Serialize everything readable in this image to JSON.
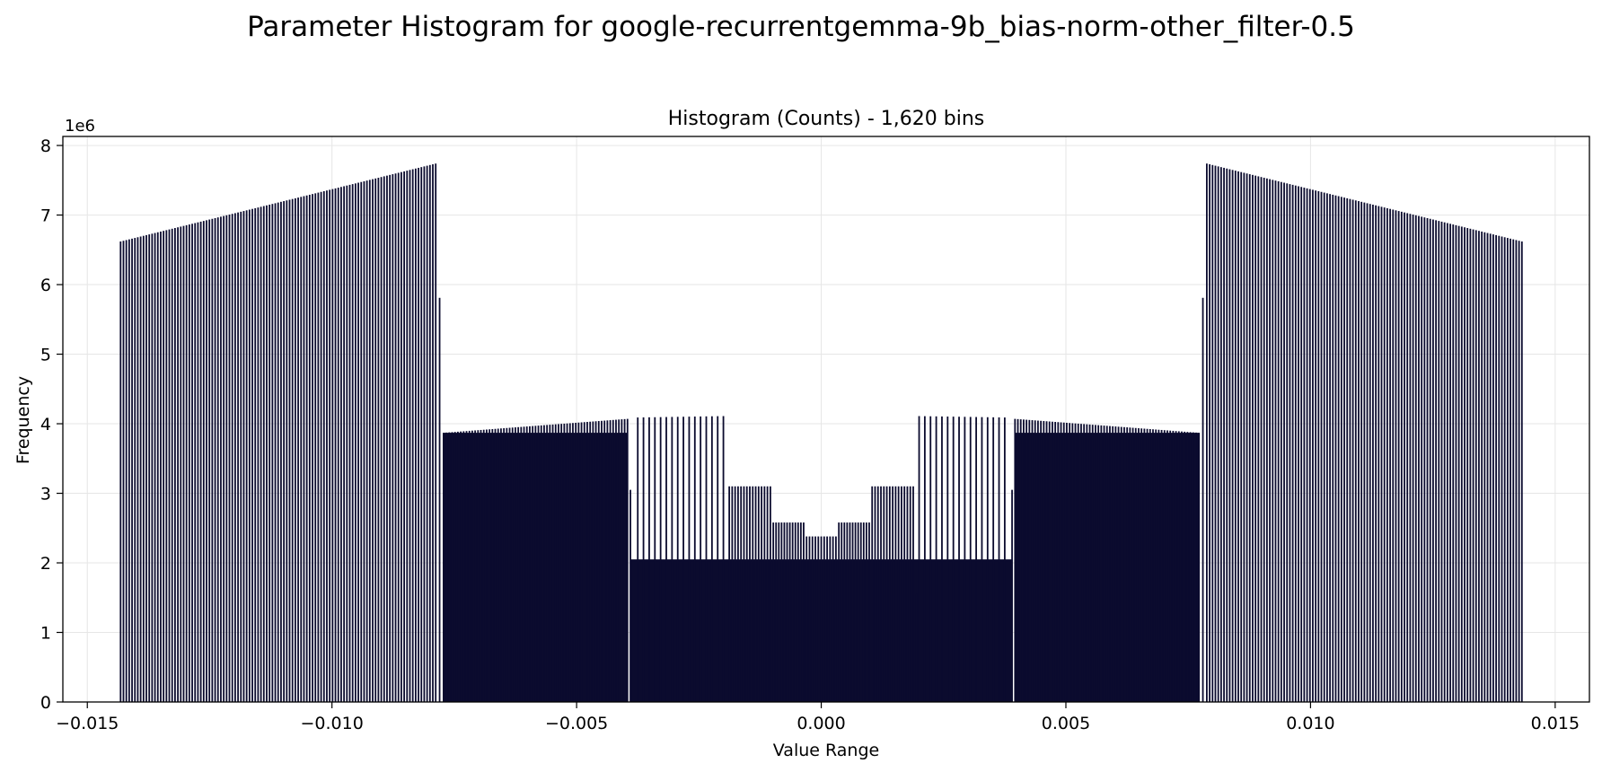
{
  "figure_title": "Parameter Histogram for google-recurrentgemma-9b_bias-norm-other_filter-0.5",
  "chart_data": {
    "type": "bar",
    "title": "Histogram (Counts) - 1,620 bins",
    "xlabel": "Value Range",
    "ylabel": "Frequency",
    "y_scale_label": "1e6",
    "y_multiplier": 1000000,
    "xlim": [
      -0.0155,
      0.0157
    ],
    "ylim": [
      0,
      8.13
    ],
    "x_ticks": [
      -0.015,
      -0.01,
      -0.005,
      0.0,
      0.005,
      0.01,
      0.015
    ],
    "x_tick_labels": [
      "−0.015",
      "−0.010",
      "−0.005",
      "0.000",
      "0.005",
      "0.010",
      "0.015"
    ],
    "y_ticks": [
      0,
      1,
      2,
      3,
      4,
      5,
      6,
      7,
      8
    ],
    "y_tick_labels": [
      "0",
      "1",
      "2",
      "3",
      "4",
      "5",
      "6",
      "7",
      "8"
    ],
    "grid": true,
    "bar_color": "#0b0b2e",
    "bar_edge_color": "#3a3a5c",
    "regions": [
      {
        "name": "outer-left",
        "x_start": -0.01432,
        "x_end": -0.00788,
        "step": 5.85e-05,
        "y_start": 6.62,
        "y_end": 7.74
      },
      {
        "name": "mid-left",
        "x_start": -0.00772,
        "x_end": -0.00396,
        "step": 5.85e-05,
        "y_start": 3.87,
        "y_end": 4.07
      },
      {
        "name": "inner-left-a",
        "x_start": -0.00375,
        "x_end": -0.002,
        "step": 0.000117,
        "y_start": 4.09,
        "y_end": 4.11
      },
      {
        "name": "inner-left-b",
        "x_start": -0.00188,
        "x_end": -0.00104,
        "step": 5.85e-05,
        "y_start": 3.1,
        "y_end": 3.1
      },
      {
        "name": "inner-left-c",
        "x_start": -0.00098,
        "x_end": -0.00036,
        "step": 5.85e-05,
        "y_start": 2.58,
        "y_end": 2.58
      },
      {
        "name": "center",
        "x_start": -0.0003,
        "x_end": 0.0003,
        "step": 5.85e-05,
        "y_start": 2.38,
        "y_end": 2.38
      },
      {
        "name": "inner-right-c",
        "x_start": 0.00036,
        "x_end": 0.00098,
        "step": 5.85e-05,
        "y_start": 2.58,
        "y_end": 2.58
      },
      {
        "name": "inner-right-b",
        "x_start": 0.00104,
        "x_end": 0.00188,
        "step": 5.85e-05,
        "y_start": 3.1,
        "y_end": 3.1
      },
      {
        "name": "inner-right-a",
        "x_start": 0.002,
        "x_end": 0.00375,
        "step": 0.000117,
        "y_start": 4.11,
        "y_end": 4.09
      },
      {
        "name": "mid-right",
        "x_start": 0.00396,
        "x_end": 0.00772,
        "step": 5.85e-05,
        "y_start": 4.07,
        "y_end": 3.87
      },
      {
        "name": "outer-right",
        "x_start": 0.00788,
        "x_end": 0.01432,
        "step": 5.85e-05,
        "y_start": 7.74,
        "y_end": 6.62
      }
    ],
    "dense_blocks": [
      {
        "name": "dense-center",
        "x_start": -0.00391,
        "x_end": 0.00391,
        "y": 2.05
      },
      {
        "name": "dense-left",
        "x_start": -0.00772,
        "x_end": -0.00396,
        "y": 3.87
      },
      {
        "name": "dense-right",
        "x_start": 0.00396,
        "x_end": 0.00772,
        "y": 3.87
      }
    ],
    "special_bars": [
      {
        "x": -0.0078,
        "y": 5.81
      },
      {
        "x": 0.0078,
        "y": 5.81
      },
      {
        "x": -0.0039,
        "y": 3.05
      },
      {
        "x": 0.0039,
        "y": 3.05
      },
      {
        "x": 0.00195,
        "y": 1.55
      }
    ]
  }
}
